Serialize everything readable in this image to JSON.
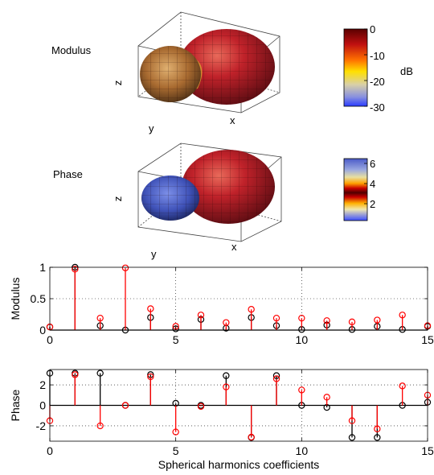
{
  "colors": {
    "red": "#ff0000",
    "black": "#000000",
    "surface_red": "#c0222a",
    "surface_dark": "#5a0c12"
  },
  "panels": {
    "modulus_3d": {
      "title": "Modulus",
      "axis_x": "x",
      "axis_y": "y",
      "axis_z": "z",
      "colorbar_unit": "dB",
      "colorbar_ticks": [
        "0",
        "-10",
        "-20",
        "-30"
      ]
    },
    "phase_3d": {
      "title": "Phase",
      "axis_x": "x",
      "axis_y": "y",
      "axis_z": "z",
      "colorbar_ticks": [
        "6",
        "4",
        "2"
      ]
    }
  },
  "chart_data": [
    {
      "type": "stem",
      "ylabel": "Modulus",
      "xlim": [
        0,
        15
      ],
      "ylim": [
        0,
        1
      ],
      "xticks": [
        0,
        5,
        10,
        15
      ],
      "yticks": [
        0,
        0.5,
        1
      ],
      "grid": true,
      "series": [
        {
          "color": "#000000",
          "x": [
            0,
            1,
            2,
            3,
            4,
            5,
            6,
            7,
            8,
            9,
            10,
            11,
            12,
            13,
            14,
            15
          ],
          "values": [
            0.05,
            1.0,
            0.07,
            0.0,
            0.2,
            0.02,
            0.17,
            0.03,
            0.2,
            0.07,
            0.01,
            0.08,
            0.01,
            0.06,
            0.01,
            0.06
          ]
        },
        {
          "color": "#ff0000",
          "x": [
            0,
            1,
            2,
            3,
            4,
            5,
            6,
            7,
            8,
            9,
            10,
            11,
            12,
            13,
            14,
            15
          ],
          "values": [
            0.05,
            0.97,
            0.19,
            0.99,
            0.34,
            0.06,
            0.24,
            0.12,
            0.33,
            0.19,
            0.19,
            0.15,
            0.13,
            0.16,
            0.24,
            0.07
          ]
        }
      ]
    },
    {
      "type": "stem",
      "ylabel": "Phase",
      "xlabel": "Spherical harmonics coefficients",
      "xlim": [
        0,
        15
      ],
      "ylim": [
        -3.5,
        3.5
      ],
      "xticks": [
        0,
        5,
        10,
        15
      ],
      "yticks": [
        -2,
        0,
        2
      ],
      "grid": true,
      "series": [
        {
          "color": "#000000",
          "x": [
            0,
            1,
            2,
            3,
            4,
            5,
            6,
            7,
            8,
            9,
            10,
            11,
            12,
            13,
            14,
            15
          ],
          "values": [
            3.14,
            3.14,
            3.14,
            0.0,
            3.0,
            0.2,
            0.0,
            2.9,
            -3.14,
            2.9,
            0.0,
            -0.2,
            -3.14,
            -3.14,
            0.0,
            0.3
          ]
        },
        {
          "color": "#ff0000",
          "x": [
            0,
            1,
            2,
            3,
            4,
            5,
            6,
            7,
            8,
            9,
            10,
            11,
            12,
            13,
            14,
            15
          ],
          "values": [
            -1.5,
            3.0,
            -2.0,
            0.0,
            2.8,
            -2.6,
            -0.1,
            1.8,
            -3.1,
            2.6,
            1.5,
            0.8,
            -1.5,
            -2.3,
            1.9,
            1.0
          ]
        }
      ]
    }
  ]
}
